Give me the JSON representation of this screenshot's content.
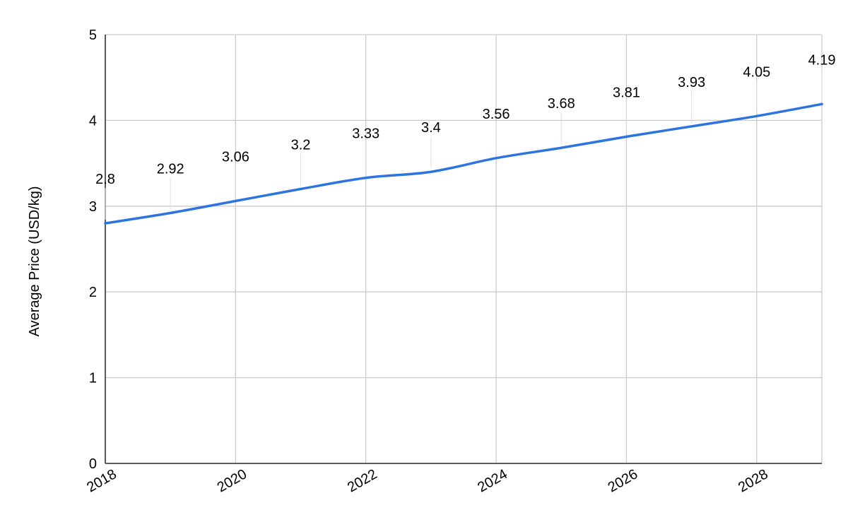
{
  "chart_data": {
    "type": "line",
    "title": "",
    "xlabel": "",
    "ylabel": "Average Price (USD/kg)",
    "x": [
      2018,
      2019,
      2020,
      2021,
      2022,
      2023,
      2024,
      2025,
      2026,
      2027,
      2028,
      2029
    ],
    "series": [
      {
        "values": [
          2.8,
          2.92,
          3.06,
          3.2,
          3.33,
          3.4,
          3.56,
          3.68,
          3.81,
          3.93,
          4.05,
          4.19
        ],
        "color": "#2e74e0"
      }
    ],
    "data_labels": [
      "2.8",
      "2.92",
      "3.06",
      "3.2",
      "3.33",
      "3.4",
      "3.56",
      "3.68",
      "3.81",
      "3.93",
      "4.05",
      "4.19"
    ],
    "xlim": [
      2018,
      2029
    ],
    "ylim": [
      0,
      5
    ],
    "yticks": [
      0,
      1,
      2,
      3,
      4,
      5
    ],
    "xticks": [
      "2018",
      "2020",
      "2022",
      "2024",
      "2026",
      "2028"
    ],
    "grid": true,
    "legend": "none"
  }
}
